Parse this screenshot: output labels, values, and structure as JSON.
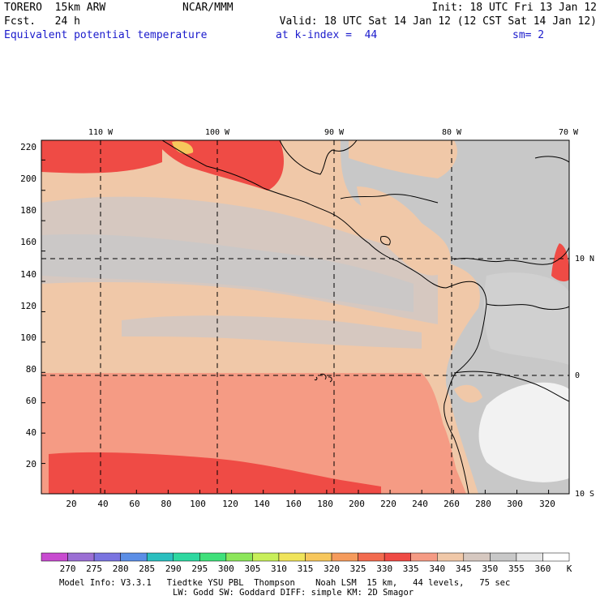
{
  "header": {
    "model": "TORERO  15km ARW",
    "org": "NCAR/MMM",
    "init": "Init: 18 UTC Fri 13 Jan 12",
    "fcst": "Fcst.   24 h",
    "valid": "Valid: 18 UTC Sat 14 Jan 12 (12 CST Sat 14 Jan 12)",
    "field": "Equivalent potential temperature",
    "level": "at k-index =  44",
    "smooth": "sm= 2"
  },
  "map": {
    "lon_labels": [
      "110 W",
      "100 W",
      "90 W",
      "80 W",
      "70 W"
    ],
    "lat_labels": [
      "10 N",
      "0",
      "10 S"
    ],
    "x_ticks": [
      "20",
      "40",
      "60",
      "80",
      "100",
      "120",
      "140",
      "160",
      "180",
      "200",
      "220",
      "240",
      "260",
      "280",
      "300",
      "320"
    ],
    "y_ticks": [
      "20",
      "40",
      "60",
      "80",
      "100",
      "120",
      "140",
      "160",
      "180",
      "200",
      "220"
    ],
    "x_range": [
      0,
      333
    ],
    "y_range": [
      0,
      233
    ]
  },
  "colorbar": {
    "unit": "K",
    "labels": [
      "270",
      "275",
      "280",
      "285",
      "290",
      "295",
      "300",
      "305",
      "310",
      "315",
      "320",
      "325",
      "330",
      "335",
      "340",
      "345",
      "350",
      "355",
      "360"
    ],
    "colors": [
      "#c84bd0",
      "#9b6fd4",
      "#7a74e0",
      "#5b8ee6",
      "#2bbfbf",
      "#2ed8a0",
      "#3fe07a",
      "#8ce65a",
      "#c8ef5a",
      "#f0e45a",
      "#f7c75c",
      "#f59b5c",
      "#f26b4f",
      "#ef4b45",
      "#f59b84",
      "#f0c8a8",
      "#d6c8c0",
      "#c8c8c8",
      "#e6e6e6",
      "#ffffff"
    ]
  },
  "footer": {
    "line1": "Model Info: V3.3.1   Tiedtke YSU PBL  Thompson    Noah LSM  15 km,   44 levels,   75 sec",
    "line2": "LW: Godd SW: Goddard DIFF: simple KM: 2D Smagor"
  }
}
